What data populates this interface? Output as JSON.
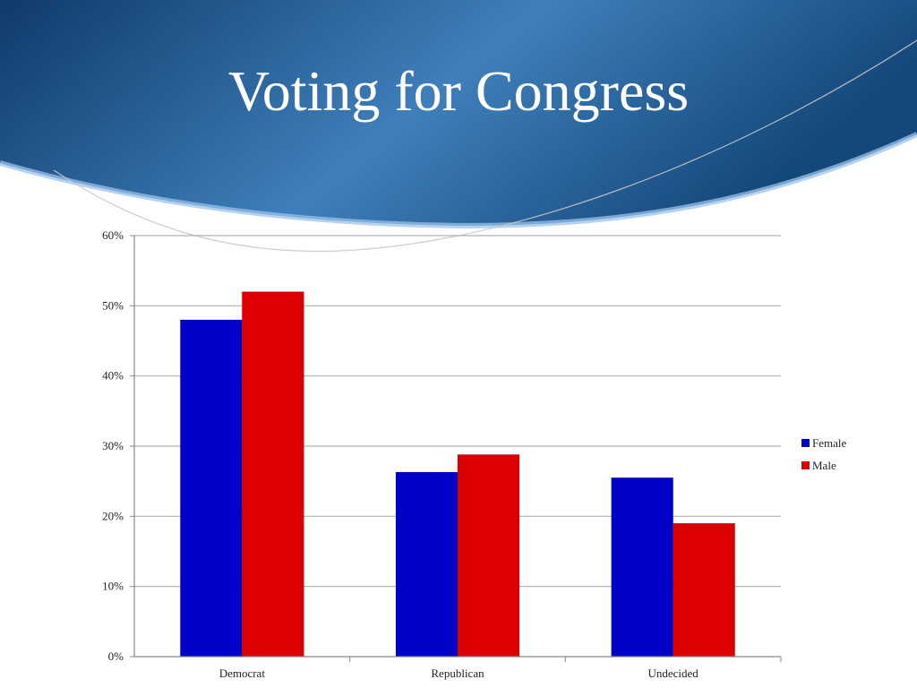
{
  "slide": {
    "title": "Voting for Congress"
  },
  "colors": {
    "header_dark": "#0f3a6a",
    "header_light": "#4a8ac4",
    "female": "#0000c8",
    "male": "#dd0000",
    "grid": "#b0b0b0",
    "axis": "#888888"
  },
  "chart_data": {
    "type": "bar",
    "categories": [
      "Democrat",
      "Republican",
      "Undecided"
    ],
    "series": [
      {
        "name": "Female",
        "values": [
          48,
          26.3,
          25.5
        ]
      },
      {
        "name": "Male",
        "values": [
          52,
          28.8,
          19
        ]
      }
    ],
    "ylim": [
      0,
      60
    ],
    "yticks": [
      0,
      10,
      20,
      30,
      40,
      50,
      60
    ],
    "ytick_suffix": "%",
    "grid": true,
    "legend": "right",
    "title": "",
    "xlabel": "",
    "ylabel": ""
  }
}
